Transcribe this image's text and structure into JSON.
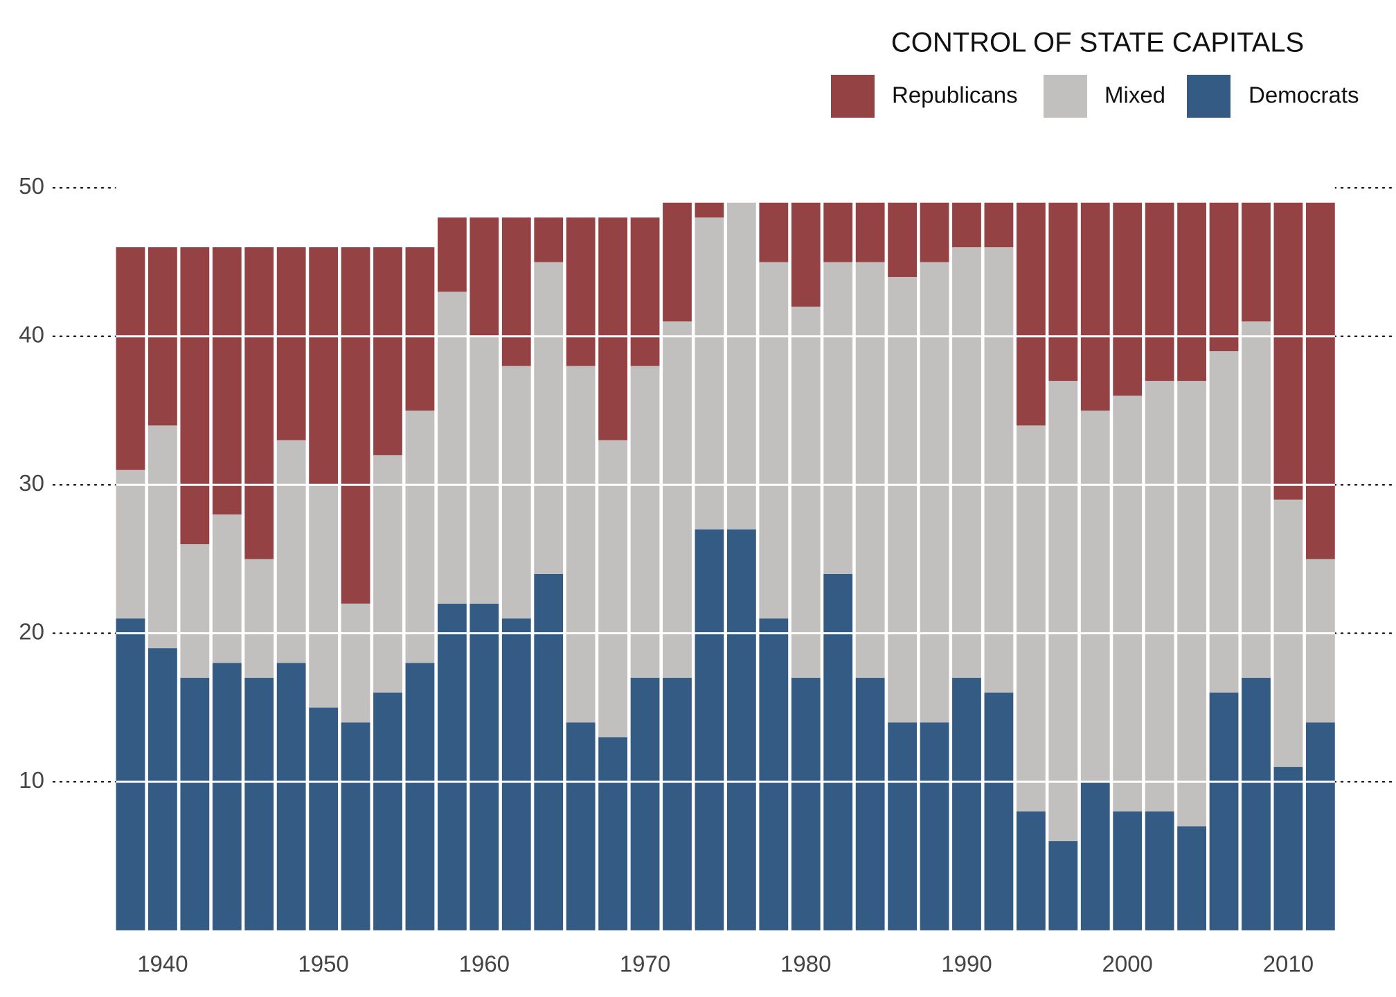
{
  "chart_data": {
    "type": "stacked_bar",
    "title": "CONTROL OF STATE CAPITALS",
    "x": [
      1938,
      1940,
      1942,
      1944,
      1946,
      1948,
      1950,
      1952,
      1954,
      1956,
      1958,
      1960,
      1962,
      1964,
      1966,
      1968,
      1970,
      1972,
      1974,
      1976,
      1978,
      1980,
      1982,
      1984,
      1986,
      1988,
      1990,
      1992,
      1994,
      1996,
      1998,
      2000,
      2002,
      2004,
      2006,
      2008,
      2010,
      2012
    ],
    "series": [
      {
        "name": "Republicans",
        "color": "#954244",
        "values": [
          15,
          12,
          20,
          18,
          21,
          13,
          16,
          24,
          14,
          11,
          5,
          8,
          10,
          3,
          10,
          15,
          10,
          8,
          1,
          0,
          4,
          7,
          4,
          4,
          5,
          4,
          3,
          3,
          15,
          12,
          14,
          13,
          12,
          12,
          10,
          8,
          20,
          24
        ]
      },
      {
        "name": "Mixed",
        "color": "#c1c0bf",
        "values": [
          10,
          15,
          9,
          10,
          8,
          15,
          15,
          8,
          16,
          17,
          21,
          18,
          17,
          21,
          24,
          20,
          21,
          24,
          21,
          22,
          24,
          25,
          21,
          28,
          30,
          31,
          29,
          30,
          26,
          31,
          25,
          28,
          29,
          30,
          23,
          24,
          18,
          11
        ]
      },
      {
        "name": "Democrats",
        "color": "#335b84",
        "values": [
          21,
          19,
          17,
          18,
          17,
          18,
          15,
          14,
          16,
          18,
          22,
          22,
          21,
          24,
          14,
          13,
          17,
          17,
          27,
          27,
          21,
          17,
          24,
          17,
          14,
          14,
          17,
          16,
          8,
          6,
          10,
          8,
          8,
          7,
          16,
          17,
          11,
          14
        ]
      }
    ],
    "xlim": [
      1933.2,
      2016.7
    ],
    "xticks": [
      1940,
      1950,
      1960,
      1970,
      1980,
      1990,
      2000,
      2010
    ],
    "ylim": [
      0,
      50
    ],
    "yticks": [
      10,
      20,
      30,
      40,
      50
    ],
    "grid": true,
    "legend": "top-right"
  }
}
